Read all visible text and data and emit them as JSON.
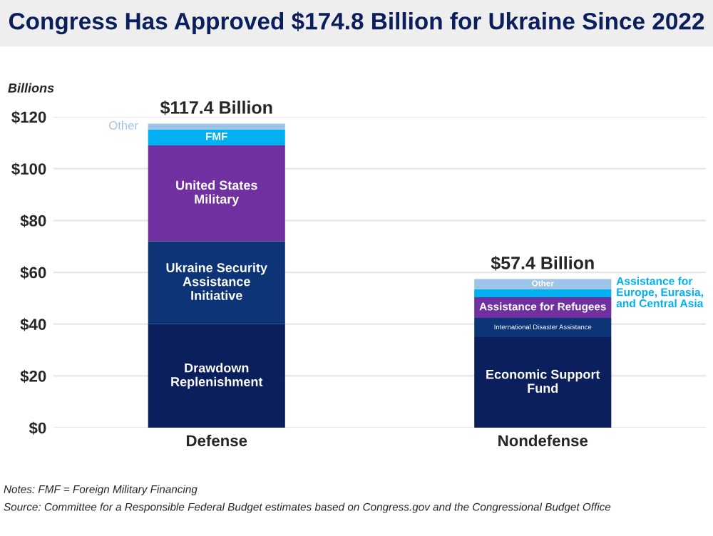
{
  "chart_data": {
    "type": "bar",
    "stacked": true,
    "title": "Congress Has Approved $174.8 Billion for Ukraine Since 2022",
    "ylabel": "Billions",
    "categories": [
      "Defense",
      "Nondefense"
    ],
    "series": [
      {
        "name": "Drawdown Replenishment",
        "color": "#0b1f5c",
        "values": [
          40,
          null
        ]
      },
      {
        "name": "Ukraine Security Assistance Initiative",
        "color": "#0e3478",
        "values": [
          32,
          null
        ]
      },
      {
        "name": "United States Military",
        "color": "#7030a0",
        "values": [
          37,
          null
        ]
      },
      {
        "name": "FMF",
        "color": "#00b0f0",
        "values": [
          6.2,
          null
        ]
      },
      {
        "name": "Other",
        "color": "#9dc3e6",
        "values": [
          2.2,
          null
        ]
      },
      {
        "name": "Economic Support Fund",
        "color": "#0b1f5c",
        "values": [
          null,
          35
        ]
      },
      {
        "name": "International Disaster Assistance",
        "color": "#0e3478",
        "values": [
          null,
          7.4
        ]
      },
      {
        "name": "Assistance for Refugees",
        "color": "#7030a0",
        "values": [
          null,
          8
        ]
      },
      {
        "name": "Assistance for Europe, Eurasia, and Central Asia",
        "color": "#00b0f0",
        "values": [
          null,
          3.1
        ]
      },
      {
        "name": "Other",
        "color": "#9dc3e6",
        "values": [
          null,
          3.9
        ]
      }
    ],
    "totals": [
      "$117.4 Billion",
      "$57.4 Billion"
    ],
    "ylim": [
      0,
      120
    ],
    "yticks": [
      {
        "value": 0,
        "label": "$0"
      },
      {
        "value": 20,
        "label": "$20"
      },
      {
        "value": 40,
        "label": "$40"
      },
      {
        "value": 60,
        "label": "$60"
      },
      {
        "value": 80,
        "label": "$80"
      },
      {
        "value": 100,
        "label": "$100"
      },
      {
        "value": 120,
        "label": "$120"
      }
    ],
    "grid": "y",
    "annotations": [
      "Notes: FMF = Foreign Military Financing",
      "Source: Committee for a Responsible Federal Budget estimates based on Congress.gov and the Congressional Budget Office"
    ]
  }
}
